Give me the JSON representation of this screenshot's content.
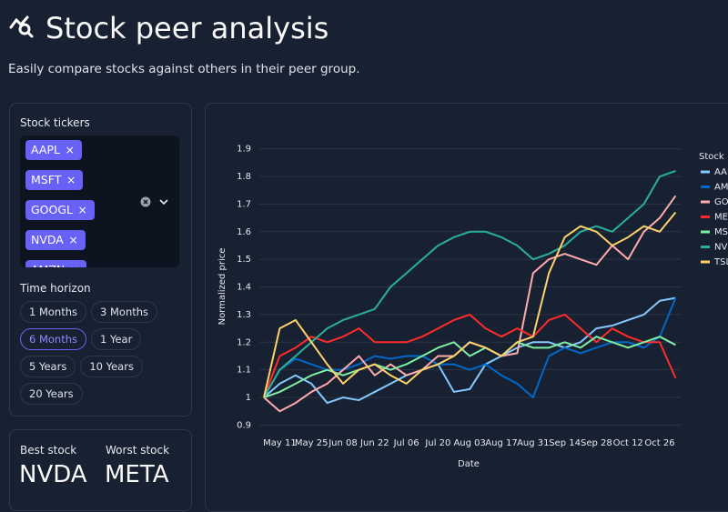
{
  "header": {
    "title": "Stock peer analysis",
    "subtitle": "Easily compare stocks against others in their peer group."
  },
  "sidebar": {
    "tickers_label": "Stock tickers",
    "tickers": [
      "AAPL",
      "MSFT",
      "GOOGL",
      "NVDA",
      "AMZN"
    ],
    "horizon_label": "Time horizon",
    "horizons": [
      "1 Months",
      "3 Months",
      "6 Months",
      "1 Year",
      "5 Years",
      "10 Years",
      "20 Years"
    ],
    "selected_horizon": 2
  },
  "summary": {
    "best_label": "Best stock",
    "best": "NVDA",
    "worst_label": "Worst stock",
    "worst": "META"
  },
  "chart_data": {
    "type": "line",
    "x_label": "Date",
    "y_label": "Normalized price",
    "legend_title": "Stock",
    "legend": "right",
    "grid": true,
    "categories": [
      null,
      "May 11",
      null,
      "May 25",
      null,
      "Jun 08",
      null,
      "Jun 22",
      null,
      "Jul 06",
      null,
      "Jul 20",
      null,
      "Aug 03",
      null,
      "Aug 17",
      null,
      "Aug 31",
      null,
      "Sep 14",
      null,
      "Sep 28",
      null,
      "Oct 12",
      null,
      "Oct 26",
      null
    ],
    "ylim": [
      0.87,
      1.94
    ],
    "yticks": [
      0.9,
      1.0,
      1.1,
      1.2,
      1.3,
      1.4,
      1.5,
      1.6,
      1.7,
      1.8,
      1.9
    ],
    "series": [
      {
        "name": "AAPL",
        "color": "#83c9ff",
        "values": [
          1.0,
          1.05,
          1.08,
          1.05,
          0.98,
          1.0,
          0.99,
          1.02,
          1.05,
          1.08,
          1.1,
          1.12,
          1.02,
          1.03,
          1.12,
          1.15,
          1.18,
          1.2,
          1.2,
          1.18,
          1.2,
          1.25,
          1.26,
          1.28,
          1.3,
          1.35,
          1.36
        ]
      },
      {
        "name": "AMZN",
        "color": "#0068c9",
        "values": [
          1.0,
          1.1,
          1.14,
          1.12,
          1.1,
          1.1,
          1.12,
          1.15,
          1.14,
          1.15,
          1.15,
          1.12,
          1.12,
          1.1,
          1.12,
          1.08,
          1.05,
          1.0,
          1.15,
          1.18,
          1.16,
          1.18,
          1.2,
          1.2,
          1.18,
          1.22,
          1.36
        ]
      },
      {
        "name": "GOOGL",
        "color": "#ffabab",
        "values": [
          1.0,
          0.95,
          0.98,
          1.02,
          1.05,
          1.1,
          1.15,
          1.08,
          1.12,
          1.08,
          1.1,
          1.15,
          1.15,
          1.2,
          1.18,
          1.15,
          1.16,
          1.45,
          1.5,
          1.52,
          1.5,
          1.48,
          1.55,
          1.5,
          1.6,
          1.65,
          1.73
        ]
      },
      {
        "name": "META",
        "color": "#ff2b2b",
        "values": [
          1.0,
          1.15,
          1.18,
          1.22,
          1.2,
          1.22,
          1.25,
          1.2,
          1.2,
          1.2,
          1.22,
          1.25,
          1.28,
          1.3,
          1.25,
          1.22,
          1.25,
          1.22,
          1.28,
          1.3,
          1.25,
          1.2,
          1.25,
          1.22,
          1.2,
          1.2,
          1.07
        ]
      },
      {
        "name": "MSFT",
        "color": "#7defa1",
        "values": [
          1.0,
          1.02,
          1.05,
          1.08,
          1.1,
          1.08,
          1.1,
          1.12,
          1.1,
          1.12,
          1.15,
          1.18,
          1.2,
          1.15,
          1.18,
          1.15,
          1.2,
          1.18,
          1.18,
          1.2,
          1.18,
          1.22,
          1.2,
          1.18,
          1.2,
          1.22,
          1.19
        ]
      },
      {
        "name": "NVDA",
        "color": "#29b09d",
        "values": [
          1.0,
          1.1,
          1.15,
          1.2,
          1.25,
          1.28,
          1.3,
          1.32,
          1.4,
          1.45,
          1.5,
          1.55,
          1.58,
          1.6,
          1.6,
          1.58,
          1.55,
          1.5,
          1.52,
          1.55,
          1.6,
          1.62,
          1.6,
          1.65,
          1.7,
          1.8,
          1.82
        ]
      },
      {
        "name": "TSLA",
        "color": "#ffd16a",
        "values": [
          1.0,
          1.25,
          1.28,
          1.2,
          1.12,
          1.05,
          1.1,
          1.12,
          1.08,
          1.05,
          1.1,
          1.12,
          1.15,
          1.2,
          1.18,
          1.15,
          1.2,
          1.22,
          1.45,
          1.58,
          1.62,
          1.6,
          1.55,
          1.58,
          1.62,
          1.6,
          1.67
        ]
      }
    ]
  }
}
